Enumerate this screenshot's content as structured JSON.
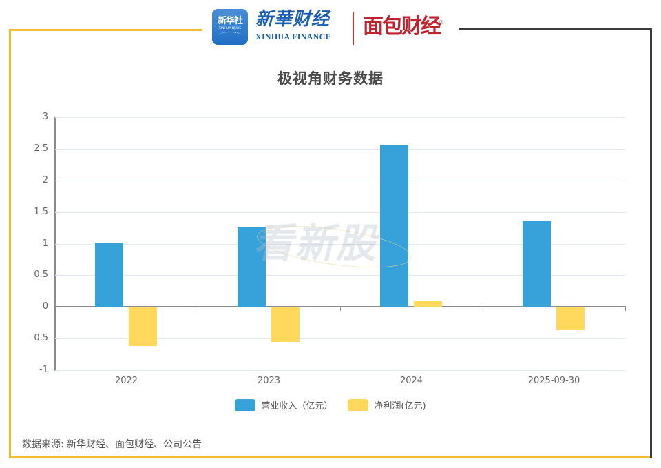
{
  "header": {
    "xinhua_icon_cn": "新华社",
    "xinhua_icon_en": "XINHUA NEWS",
    "xinhua_finance_cn": "新華财经",
    "xinhua_finance_en": "XINHUA FINANCE",
    "mianbao_logo": "面包财经",
    "registered_mark": "®"
  },
  "colors": {
    "revenue": "#37a2da",
    "net_profit": "#ffd85c",
    "frame_yellow": "#f2bd2c",
    "frame_dark": "#3a3a3a"
  },
  "watermark": "看新股",
  "source": "数据来源: 新华财经、面包财经、公司公告",
  "chart_data": {
    "type": "bar",
    "title": "极视角财务数据",
    "categories": [
      "2022",
      "2023",
      "2024",
      "2025-09-30"
    ],
    "series": [
      {
        "name": "营业收入（亿元）",
        "values": [
          1.02,
          1.27,
          2.56,
          1.35
        ]
      },
      {
        "name": "净利润(亿元)",
        "values": [
          -0.61,
          -0.55,
          0.09,
          -0.36
        ]
      }
    ],
    "xlabel": "",
    "ylabel": "",
    "ylim": [
      -1,
      3
    ],
    "yticks": [
      "3",
      "2.5",
      "2",
      "1.5",
      "1",
      "0.5",
      "0",
      "-0.5",
      "-1"
    ],
    "grid": true,
    "legend_position": "bottom"
  }
}
